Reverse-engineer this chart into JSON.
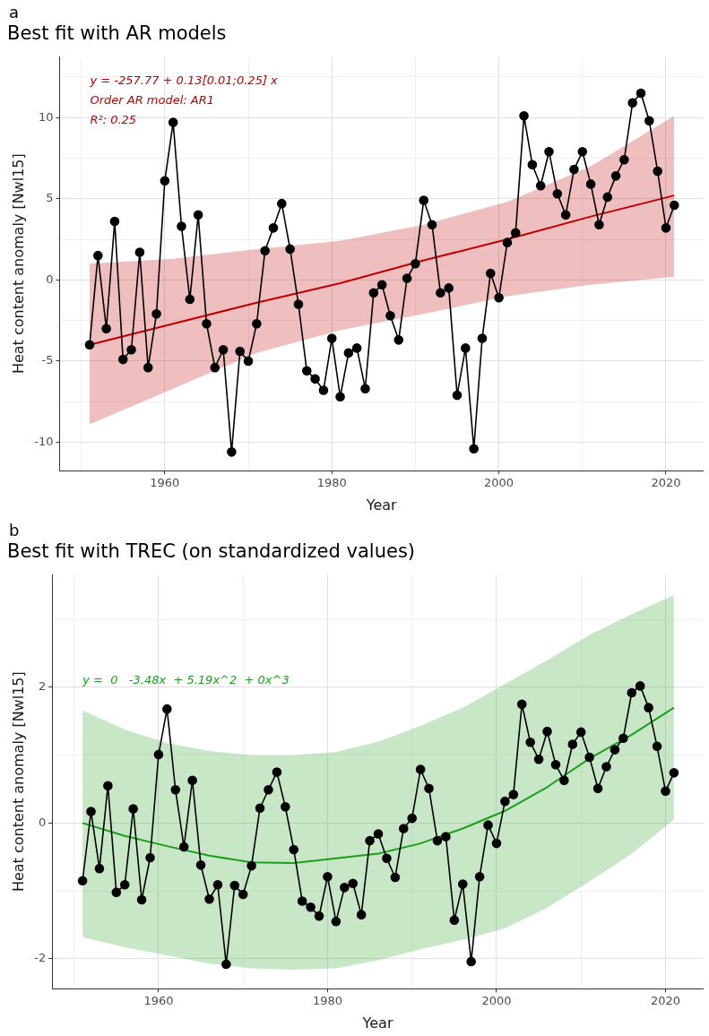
{
  "chart_data": [
    {
      "type": "line",
      "title": "Best fit with AR models",
      "xlabel": "Year",
      "ylabel": "Heat content anomaly [Nwl15]",
      "annotations": [
        "a",
        "y = -257.77 + 0.13[0.01;0.25] x",
        "Order AR model: AR1",
        "R²: 0.25"
      ],
      "xlim": [
        1947.4,
        2024.5
      ],
      "xticks": [
        {
          "value": 1950,
          "label": null
        },
        1960,
        {
          "value": 1970,
          "label": null
        },
        1980,
        {
          "value": 1990,
          "label": null
        },
        2000,
        {
          "value": 2010,
          "label": null
        },
        2020
      ],
      "ylim": [
        -11.75,
        13.75
      ],
      "yticks": [
        {
          "value": -7.5,
          "label": null
        },
        -10,
        {
          "value": -2.5,
          "label": null
        },
        -5,
        {
          "value": 2.5,
          "label": null
        },
        0,
        {
          "value": 7.5,
          "label": null
        },
        5,
        {
          "value": 12.5,
          "label": null
        },
        10
      ],
      "grid": true,
      "legend": false,
      "series": [
        {
          "marker": "circle",
          "color": "#000000",
          "x": [
            1951,
            1952,
            1953,
            1954,
            1955,
            1956,
            1957,
            1958,
            1959,
            1960,
            1961,
            1962,
            1963,
            1964,
            1965,
            1966,
            1967,
            1968,
            1969,
            1970,
            1971,
            1972,
            1973,
            1974,
            1975,
            1976,
            1977,
            1978,
            1979,
            1980,
            1981,
            1982,
            1983,
            1984,
            1985,
            1986,
            1987,
            1988,
            1989,
            1990,
            1991,
            1992,
            1993,
            1994,
            1995,
            1996,
            1997,
            1998,
            1999,
            2000,
            2001,
            2002,
            2003,
            2004,
            2005,
            2006,
            2007,
            2008,
            2009,
            2010,
            2011,
            2012,
            2013,
            2014,
            2015,
            2016,
            2017,
            2018,
            2019,
            2020,
            2021
          ],
          "values": [
            -4.0,
            1.5,
            -3.0,
            3.6,
            -4.9,
            -4.3,
            1.7,
            -5.4,
            -2.1,
            6.1,
            9.7,
            3.3,
            -1.2,
            4.0,
            -2.7,
            -5.4,
            -4.3,
            -10.6,
            -4.4,
            -5.0,
            -2.7,
            1.8,
            3.2,
            4.7,
            1.9,
            -1.5,
            -5.6,
            -6.1,
            -6.8,
            -3.6,
            -7.2,
            -4.5,
            -4.2,
            -6.7,
            -0.8,
            -0.3,
            -2.2,
            -3.7,
            0.1,
            1.0,
            4.9,
            3.4,
            -0.8,
            -0.5,
            -7.1,
            -4.2,
            -10.4,
            -3.6,
            0.4,
            -1.1,
            2.3,
            2.9,
            10.1,
            7.1,
            5.8,
            7.9,
            5.3,
            4.0,
            6.8,
            7.9,
            5.9,
            3.4,
            5.1,
            6.4,
            7.4,
            10.9,
            11.5,
            9.8,
            6.7,
            3.2,
            4.6
          ]
        },
        {
          "marker": "none",
          "color": "#c00000",
          "x": [
            1951,
            1961,
            1971,
            1981,
            1991,
            2001,
            2011,
            2021
          ],
          "values": [
            -4.0,
            -2.7,
            -1.4,
            -0.2,
            1.2,
            2.5,
            3.9,
            5.2
          ],
          "lower": [
            -8.9,
            -6.7,
            -4.5,
            -3.1,
            -2.1,
            -1.0,
            -0.3,
            0.2
          ],
          "upper": [
            1.0,
            1.3,
            1.9,
            2.4,
            3.4,
            4.8,
            7.0,
            10.1
          ]
        }
      ]
    },
    {
      "type": "line",
      "title": "Best fit with TREC (on standardized values)",
      "xlabel": "Year",
      "ylabel": "Heat content anomaly [Nwl15]",
      "annotations": [
        "b",
        "y =  0   -3.48x  + 5.19x^2  + 0x^3"
      ],
      "xlim": [
        1947.4,
        2024.5
      ],
      "xticks": [
        {
          "value": 1950,
          "label": null
        },
        1960,
        {
          "value": 1970,
          "label": null
        },
        1980,
        {
          "value": 1990,
          "label": null
        },
        2000,
        {
          "value": 2010,
          "label": null
        },
        2020
      ],
      "ylim": [
        -2.44,
        3.66
      ],
      "yticks": [
        {
          "value": -1,
          "label": null
        },
        -2,
        {
          "value": 1,
          "label": null
        },
        0,
        {
          "value": 3,
          "label": null
        },
        2
      ],
      "grid": true,
      "legend": false,
      "series": [
        {
          "marker": "circle",
          "color": "#000000",
          "x": [
            1951,
            1952,
            1953,
            1954,
            1955,
            1956,
            1957,
            1958,
            1959,
            1960,
            1961,
            1962,
            1963,
            1964,
            1965,
            1966,
            1967,
            1968,
            1969,
            1970,
            1971,
            1972,
            1973,
            1974,
            1975,
            1976,
            1977,
            1978,
            1979,
            1980,
            1981,
            1982,
            1983,
            1984,
            1985,
            1986,
            1987,
            1988,
            1989,
            1990,
            1991,
            1992,
            1993,
            1994,
            1995,
            1996,
            1997,
            1998,
            1999,
            2000,
            2001,
            2002,
            2003,
            2004,
            2005,
            2006,
            2007,
            2008,
            2009,
            2010,
            2011,
            2012,
            2013,
            2014,
            2015,
            2016,
            2017,
            2018,
            2019,
            2020,
            2021
          ],
          "values": [
            -0.85,
            0.17,
            -0.67,
            0.55,
            -1.02,
            -0.91,
            0.21,
            -1.13,
            -0.51,
            1.01,
            1.68,
            0.49,
            -0.35,
            0.63,
            -0.62,
            -1.12,
            -0.91,
            -2.08,
            -0.92,
            -1.05,
            -0.63,
            0.22,
            0.49,
            0.75,
            0.24,
            -0.39,
            -1.15,
            -1.24,
            -1.37,
            -0.79,
            -1.45,
            -0.95,
            -0.89,
            -1.35,
            -0.26,
            -0.16,
            -0.52,
            -0.8,
            -0.08,
            0.07,
            0.79,
            0.51,
            -0.26,
            -0.2,
            -1.43,
            -0.9,
            -2.04,
            -0.79,
            -0.03,
            -0.3,
            0.32,
            0.42,
            1.75,
            1.19,
            0.94,
            1.35,
            0.86,
            0.63,
            1.16,
            1.34,
            0.97,
            0.51,
            0.83,
            1.08,
            1.25,
            1.92,
            2.02,
            1.7,
            1.13,
            0.47,
            0.74
          ]
        },
        {
          "marker": "none",
          "color": "#1e9e1e",
          "x": [
            1951,
            1956,
            1961,
            1966,
            1971,
            1976,
            1981,
            1986,
            1991,
            1996,
            2001,
            2006,
            2011,
            2016,
            2021
          ],
          "values": [
            0.0,
            -0.19,
            -0.34,
            -0.48,
            -0.58,
            -0.59,
            -0.52,
            -0.45,
            -0.3,
            -0.08,
            0.18,
            0.53,
            0.95,
            1.3,
            1.7
          ],
          "lower": [
            -1.68,
            -1.83,
            -1.95,
            -2.07,
            -2.14,
            -2.16,
            -2.14,
            -2.02,
            -1.86,
            -1.72,
            -1.55,
            -1.25,
            -0.86,
            -0.45,
            0.05
          ],
          "upper": [
            1.66,
            1.38,
            1.18,
            1.06,
            1.0,
            1.0,
            1.05,
            1.2,
            1.43,
            1.7,
            2.05,
            2.4,
            2.77,
            3.08,
            3.36
          ]
        }
      ]
    }
  ]
}
